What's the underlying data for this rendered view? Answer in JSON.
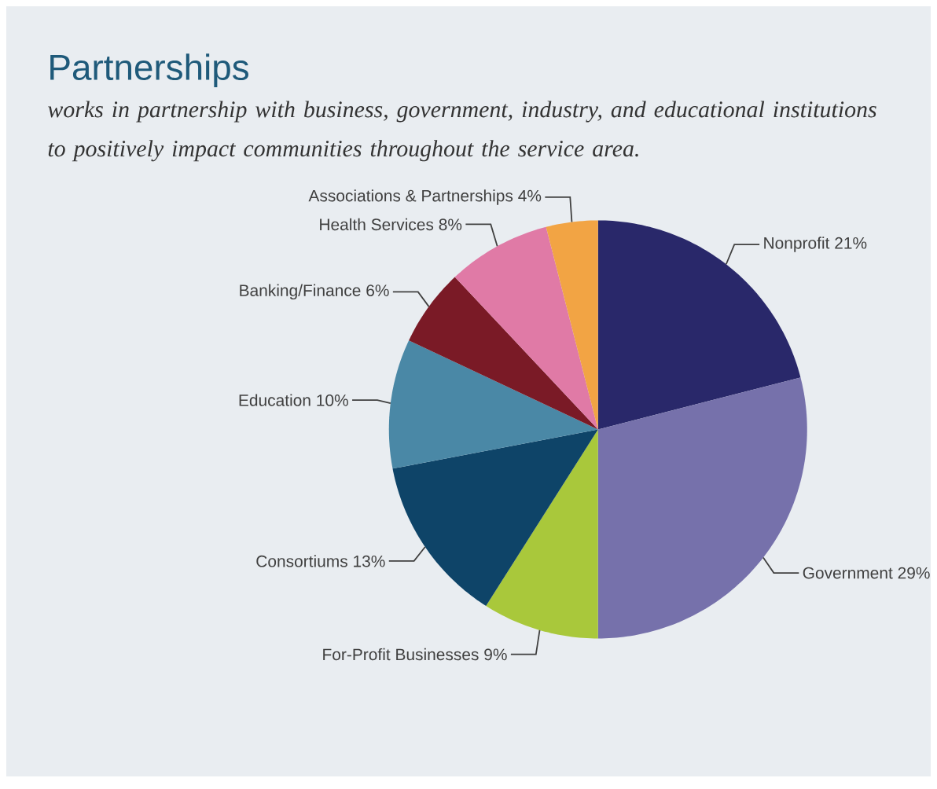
{
  "chart_data": {
    "type": "pie",
    "title": "Partnerships",
    "subtitle": "works in partnership with business, government, industry, and educational institutions to positively impact communities throughout the service area.",
    "categories": [
      "Nonprofit",
      "Government",
      "For-Profit Businesses",
      "Consortiums",
      "Education",
      "Banking/Finance",
      "Health Services",
      "Associations & Partnerships"
    ],
    "values": [
      21,
      29,
      9,
      13,
      10,
      6,
      8,
      4
    ],
    "value_labels": [
      "21%",
      "29%",
      "9%",
      "13%",
      "10%",
      "6%",
      "8%",
      "4%"
    ],
    "colors": [
      "#29286a",
      "#7671ab",
      "#a9c83b",
      "#0e4468",
      "#4a88a6",
      "#7a1a26",
      "#e07aa6",
      "#f2a444"
    ]
  }
}
